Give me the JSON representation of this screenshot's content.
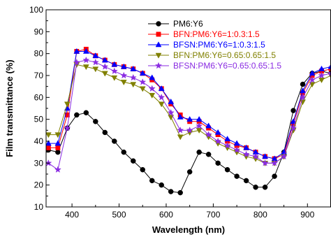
{
  "chart_data": {
    "type": "line",
    "xlabel": "Wavelength (nm)",
    "ylabel": "Film transmittance (%)",
    "xlim": [
      345,
      950
    ],
    "ylim": [
      10,
      100
    ],
    "xticks": [
      400,
      500,
      600,
      700,
      800,
      900
    ],
    "yticks": [
      10,
      20,
      30,
      40,
      50,
      60,
      70,
      80,
      90,
      100
    ],
    "grid": false,
    "legend_position": "top-center",
    "series": [
      {
        "name": "PM6:Y6",
        "color": "#000000",
        "marker": "circle",
        "x": [
          350,
          370,
          390,
          410,
          430,
          450,
          470,
          490,
          510,
          530,
          550,
          570,
          590,
          610,
          630,
          650,
          670,
          690,
          710,
          730,
          750,
          770,
          790,
          810,
          830,
          850,
          870,
          890,
          910,
          930,
          950
        ],
        "y": [
          36,
          35,
          46,
          52,
          53,
          49,
          44,
          40,
          35,
          31,
          27,
          22,
          20,
          17,
          16.5,
          26,
          35,
          34,
          30,
          27,
          24,
          22,
          19,
          19,
          24,
          35,
          54,
          66,
          71,
          72,
          71
        ]
      },
      {
        "name": "BFN:PM6:Y6=1:0.3:1.5",
        "color": "#ff0000",
        "marker": "square",
        "x": [
          350,
          370,
          390,
          410,
          430,
          450,
          470,
          490,
          510,
          530,
          550,
          570,
          590,
          610,
          630,
          650,
          670,
          690,
          710,
          730,
          750,
          770,
          790,
          810,
          830,
          850,
          870,
          890,
          910,
          930,
          950
        ],
        "y": [
          37,
          37,
          52,
          81,
          82,
          79,
          77,
          75,
          74,
          73,
          71,
          68,
          64,
          57,
          52,
          49,
          49,
          46,
          43,
          40,
          38,
          37,
          35,
          33,
          32,
          34,
          48,
          62,
          70,
          72,
          73
        ]
      },
      {
        "name": "BFSN:PM6:Y6=1:0.3:1.5",
        "color": "#0000ff",
        "marker": "triangle-up",
        "x": [
          350,
          370,
          390,
          410,
          430,
          450,
          470,
          490,
          510,
          530,
          550,
          570,
          590,
          610,
          630,
          650,
          670,
          690,
          710,
          730,
          750,
          770,
          790,
          810,
          830,
          850,
          870,
          890,
          910,
          930,
          950
        ],
        "y": [
          39,
          39,
          55,
          81,
          81,
          79,
          77,
          75,
          74,
          73,
          71,
          69,
          64,
          58,
          51,
          50,
          50,
          47,
          44,
          41,
          39,
          37,
          35,
          33,
          32,
          35,
          49,
          63,
          71,
          73,
          74
        ]
      },
      {
        "name": "BFN:PM6:Y6=0.65:0.65:1.5",
        "color": "#808000",
        "marker": "triangle-down",
        "x": [
          350,
          370,
          390,
          410,
          430,
          450,
          470,
          490,
          510,
          530,
          550,
          570,
          590,
          610,
          630,
          650,
          670,
          690,
          710,
          730,
          750,
          770,
          790,
          810,
          830,
          850,
          870,
          890,
          910,
          930,
          950
        ],
        "y": [
          43,
          43,
          57,
          75,
          74,
          73,
          71,
          69,
          67,
          66,
          64,
          61,
          57,
          51,
          42,
          44,
          45,
          42,
          39,
          37,
          35,
          33,
          32,
          30,
          30,
          33,
          45,
          58,
          66,
          68,
          70
        ]
      },
      {
        "name": "BFSN:PM6:Y6=0.65:0.65:1.5",
        "color": "#8a2be2",
        "marker": "star",
        "x": [
          350,
          370,
          390,
          410,
          430,
          450,
          470,
          490,
          510,
          530,
          550,
          570,
          590,
          610,
          630,
          650,
          670,
          690,
          710,
          730,
          750,
          770,
          790,
          810,
          830,
          850,
          870,
          890,
          910,
          930,
          950
        ],
        "y": [
          30,
          27,
          46,
          76,
          77,
          76,
          74,
          72,
          70,
          69,
          67,
          64,
          60,
          53,
          45,
          45,
          47,
          43,
          40,
          38,
          36,
          34,
          33,
          30,
          30,
          33,
          46,
          60,
          68,
          70,
          71
        ]
      }
    ]
  }
}
